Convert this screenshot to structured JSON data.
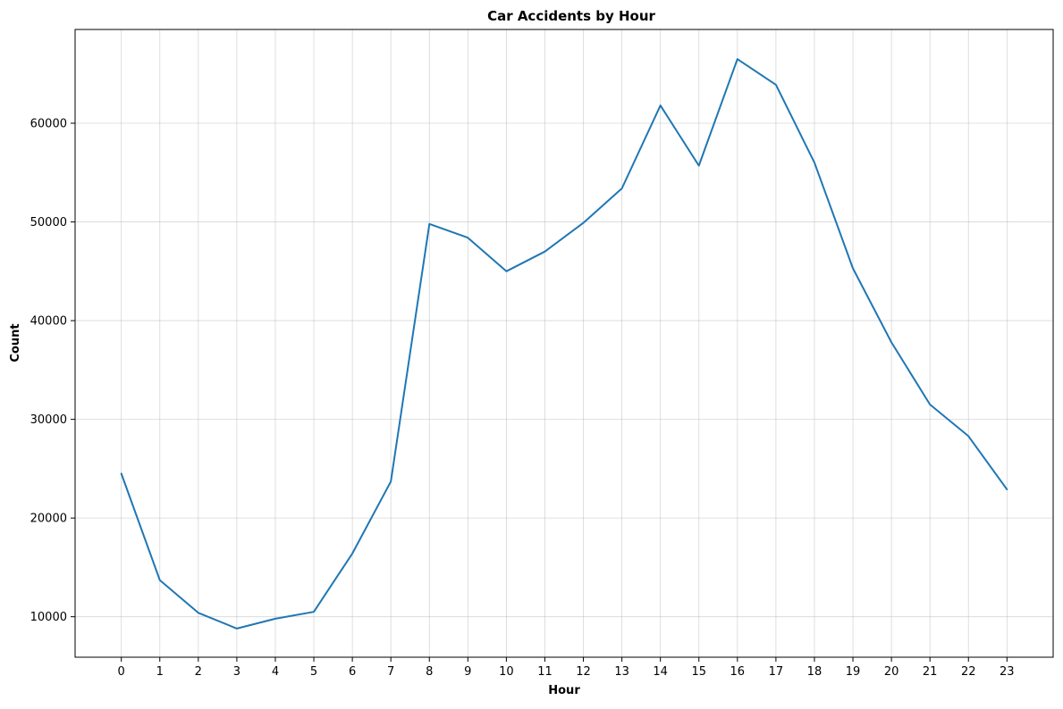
{
  "chart_data": {
    "type": "line",
    "title": "Car Accidents by Hour",
    "xlabel": "Hour",
    "ylabel": "Count",
    "x": [
      0,
      1,
      2,
      3,
      4,
      5,
      6,
      7,
      8,
      9,
      10,
      11,
      12,
      13,
      14,
      15,
      16,
      17,
      18,
      19,
      20,
      21,
      22,
      23
    ],
    "series": [
      {
        "values": [
          24500,
          13700,
          10400,
          8800,
          9800,
          10500,
          16400,
          23700,
          49800,
          48400,
          45000,
          47000,
          49900,
          53400,
          61800,
          55700,
          66500,
          63900,
          56000,
          45300,
          37800,
          31500,
          28300,
          22900
        ],
        "color": "#1f77b4"
      }
    ],
    "xticks": [
      "0",
      "1",
      "2",
      "3",
      "4",
      "5",
      "6",
      "7",
      "8",
      "9",
      "10",
      "11",
      "12",
      "13",
      "14",
      "15",
      "16",
      "17",
      "18",
      "19",
      "20",
      "21",
      "22",
      "23"
    ],
    "yticks": [
      10000,
      20000,
      30000,
      40000,
      50000,
      60000
    ],
    "ytick_labels": [
      "10000",
      "20000",
      "30000",
      "40000",
      "50000",
      "60000"
    ],
    "xlim": [
      -1.2,
      24.2
    ],
    "ylim": [
      5900,
      69500
    ],
    "grid": true,
    "legend": "none"
  }
}
